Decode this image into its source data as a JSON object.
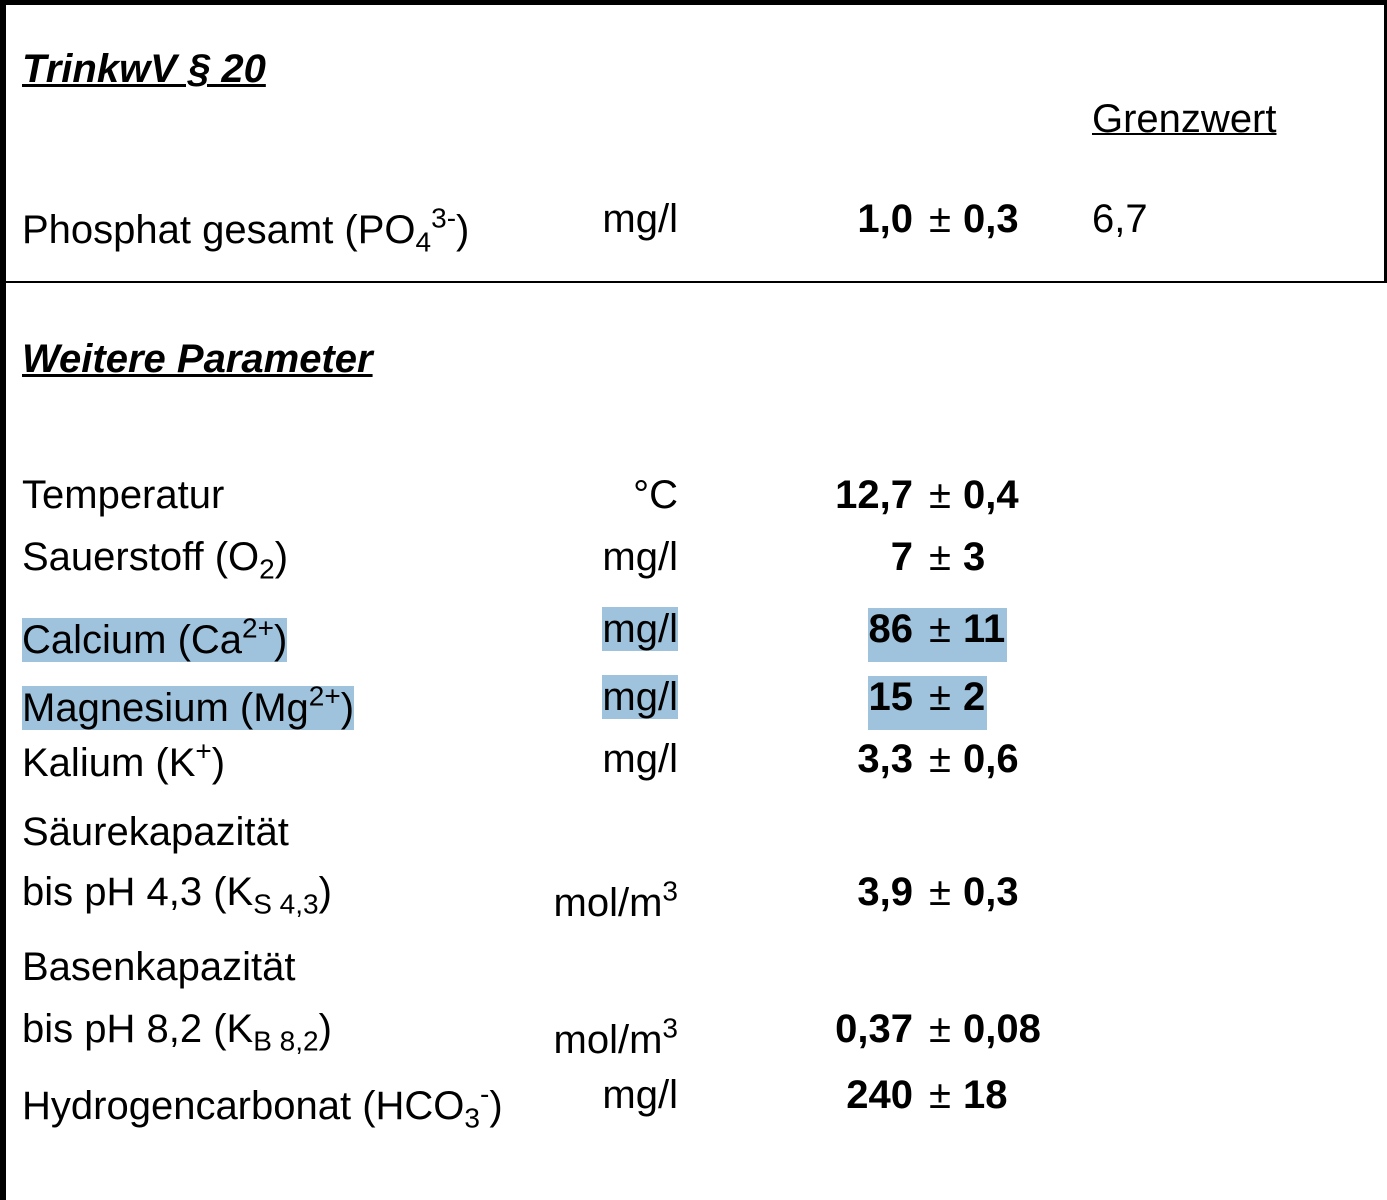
{
  "sections": [
    {
      "heading": "TrinkwV § 20",
      "column_header": "Grenzwert",
      "rows": [
        {
          "label": [
            [
              {
                "text": "Phosphat gesamt (PO"
              },
              {
                "text": "4",
                "pos": "sub"
              },
              {
                "text": "3-",
                "pos": "sup"
              },
              {
                "text": ")"
              }
            ]
          ],
          "unit": [
            {
              "text": "mg/l"
            }
          ],
          "value": "1,0",
          "sign": "±",
          "uncertainty": "0,3",
          "limit": "6,7",
          "highlight": false
        }
      ]
    },
    {
      "heading": "Weitere Parameter",
      "rows": [
        {
          "label": [
            [
              {
                "text": "Temperatur"
              }
            ]
          ],
          "unit": [
            {
              "text": "°C"
            }
          ],
          "value": "12,7",
          "sign": "±",
          "uncertainty": "0,4",
          "highlight": false
        },
        {
          "label": [
            [
              {
                "text": "Sauerstoff (O"
              },
              {
                "text": "2",
                "pos": "sub"
              },
              {
                "text": ")"
              }
            ]
          ],
          "unit": [
            {
              "text": "mg/l"
            }
          ],
          "value": "7",
          "sign": "±",
          "uncertainty": "3",
          "highlight": false
        },
        {
          "label": [
            [
              {
                "text": "Calcium (Ca"
              },
              {
                "text": "2+",
                "pos": "sup"
              },
              {
                "text": ")"
              }
            ]
          ],
          "unit": [
            {
              "text": "mg/l"
            }
          ],
          "value": "86",
          "sign": "±",
          "uncertainty": "11",
          "highlight": true
        },
        {
          "label": [
            [
              {
                "text": "Magnesium (Mg"
              },
              {
                "text": "2+",
                "pos": "sup"
              },
              {
                "text": ")"
              }
            ]
          ],
          "unit": [
            {
              "text": "mg/l"
            }
          ],
          "value": "15",
          "sign": "±",
          "uncertainty": "2",
          "highlight": true
        },
        {
          "label": [
            [
              {
                "text": "Kalium (K"
              },
              {
                "text": "+",
                "pos": "sup"
              },
              {
                "text": ")"
              }
            ]
          ],
          "unit": [
            {
              "text": "mg/l"
            }
          ],
          "value": "3,3",
          "sign": "±",
          "uncertainty": "0,6",
          "highlight": false
        },
        {
          "label": [
            [
              {
                "text": "Säurekapazität"
              }
            ],
            [
              {
                "text": "bis pH 4,3 (K"
              },
              {
                "text": "S 4,3",
                "pos": "sub"
              },
              {
                "text": ")"
              }
            ]
          ],
          "unit": [
            {
              "text": "mol/m"
            },
            {
              "text": "3",
              "pos": "sup"
            }
          ],
          "value": "3,9",
          "sign": "±",
          "uncertainty": "0,3",
          "highlight": false
        },
        {
          "label": [
            [
              {
                "text": "Basenkapazität"
              }
            ],
            [
              {
                "text": "bis pH 8,2 (K"
              },
              {
                "text": "B 8,2",
                "pos": "sub"
              },
              {
                "text": ")"
              }
            ]
          ],
          "unit": [
            {
              "text": "mol/m"
            },
            {
              "text": "3",
              "pos": "sup"
            }
          ],
          "value": "0,37",
          "sign": "±",
          "uncertainty": "0,08",
          "highlight": false
        },
        {
          "label": [
            [
              {
                "text": "Hydrogencarbonat (HCO"
              },
              {
                "text": "3",
                "pos": "sub"
              },
              {
                "text": "-",
                "pos": "sup"
              },
              {
                "text": ")"
              }
            ]
          ],
          "unit": [
            {
              "text": "mg/l"
            }
          ],
          "value": "240",
          "sign": "±",
          "uncertainty": "18",
          "highlight": false
        }
      ]
    }
  ]
}
